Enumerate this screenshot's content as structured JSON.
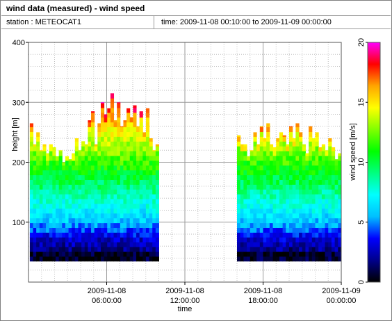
{
  "header": {
    "title": "wind data (measured) - wind speed",
    "station": "station : METEOCAT1",
    "time_range": "time: 2009-11-08 00:10:00 to 2009-11-09 00:00:00"
  },
  "chart_data": {
    "type": "heatmap",
    "title": "wind data (measured) - wind speed",
    "xlabel": "time",
    "ylabel": "height [m]",
    "colorbar_label": "wind speed [m/s]",
    "x_range_hours": [
      0,
      24
    ],
    "ylim": [
      0,
      400
    ],
    "y_ticks": [
      "100",
      "200",
      "300",
      "400"
    ],
    "x_ticks": [
      {
        "hour": 6,
        "line1": "2009-11-08",
        "line2": "06:00:00"
      },
      {
        "hour": 12,
        "line1": "2009-11-08",
        "line2": "12:00:00"
      },
      {
        "hour": 18,
        "line1": "2009-11-08",
        "line2": "18:00:00"
      },
      {
        "hour": 24,
        "line1": "2009-11-09",
        "line2": "00:00:00"
      }
    ],
    "colorbar_range": [
      0,
      20
    ],
    "colorbar_ticks": [
      "0",
      "5",
      "10",
      "15",
      "20"
    ],
    "grid": true,
    "data_gaps_hours": [
      [
        10.0,
        16.0
      ]
    ],
    "segments": [
      {
        "start_hour": 0.1,
        "end_hour": 10.0,
        "max_height_m": [
          265,
          230,
          250,
          220,
          230,
          215,
          230,
          225,
          210,
          220,
          200,
          210,
          205,
          215,
          240,
          220,
          235,
          230,
          270,
          285,
          230,
          265,
          300,
          280,
          290,
          315,
          270,
          300,
          260,
          270,
          290,
          275,
          295,
          260,
          285,
          250,
          290,
          240,
          220,
          230
        ]
      },
      {
        "start_hour": 16.0,
        "end_hour": 24.0,
        "max_height_m": [
          245,
          230,
          230,
          210,
          220,
          250,
          230,
          260,
          240,
          265,
          230,
          225,
          240,
          250,
          245,
          230,
          260,
          240,
          265,
          250,
          230,
          215,
          260,
          240,
          250,
          225,
          230,
          220,
          240,
          225,
          205,
          215
        ]
      }
    ],
    "min_height_m": 35,
    "colors": {
      "background": "#ffffff",
      "grid": "#bfbfbf",
      "colormap": [
        "#000000",
        "#00008b",
        "#0000ff",
        "#00bfff",
        "#00ffff",
        "#00ff80",
        "#00ff00",
        "#80ff00",
        "#ffff00",
        "#ffa500",
        "#ff0000",
        "#ff00ff"
      ]
    }
  }
}
